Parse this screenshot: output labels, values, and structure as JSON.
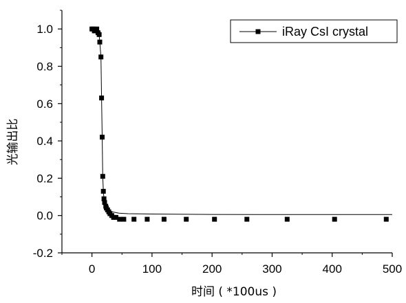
{
  "chart_data": {
    "type": "line",
    "title": "",
    "xlabel": "时间 ( *100us )",
    "ylabel": "光输出比",
    "xlim": [
      -50,
      500
    ],
    "ylim": [
      -0.2,
      1.1
    ],
    "xticks": [
      0,
      100,
      200,
      300,
      400,
      500
    ],
    "yticks": [
      -0.2,
      0.0,
      0.2,
      0.4,
      0.6,
      0.8,
      1.0
    ],
    "xtick_labels": [
      "0",
      "100",
      "200",
      "300",
      "400",
      "500"
    ],
    "ytick_labels": [
      "-0.2",
      "0.0",
      "0.2",
      "0.4",
      "0.6",
      "0.8",
      "1.0"
    ],
    "grid": false,
    "legend_position": "top-right",
    "series": [
      {
        "name": "iRay CsI crystal",
        "color": "#000000",
        "marker": "square",
        "points": [
          [
            0,
            1.0
          ],
          [
            2,
            1.0
          ],
          [
            4,
            0.99
          ],
          [
            6,
            0.99
          ],
          [
            8,
            1.0
          ],
          [
            10,
            0.98
          ],
          [
            12,
            0.97
          ],
          [
            13,
            0.93
          ],
          [
            15,
            0.85
          ],
          [
            16,
            0.63
          ],
          [
            17,
            0.42
          ],
          [
            18,
            0.21
          ],
          [
            19,
            0.13
          ],
          [
            20,
            0.09
          ],
          [
            21,
            0.07
          ],
          [
            23,
            0.05
          ],
          [
            24,
            0.04
          ],
          [
            26,
            0.03
          ],
          [
            28,
            0.02
          ],
          [
            30,
            0.01
          ],
          [
            33,
            0.0
          ],
          [
            36,
            -0.01
          ],
          [
            40,
            -0.01
          ],
          [
            46,
            -0.02
          ],
          [
            53,
            -0.02
          ],
          [
            70,
            -0.02
          ],
          [
            92,
            -0.02
          ],
          [
            120,
            -0.02
          ],
          [
            157,
            -0.02
          ],
          [
            204,
            -0.02
          ],
          [
            258,
            -0.02
          ],
          [
            325,
            -0.02
          ],
          [
            404,
            -0.02
          ],
          [
            490,
            -0.02
          ]
        ],
        "line": [
          [
            0,
            1.0
          ],
          [
            5,
            1.0
          ],
          [
            10,
            0.99
          ],
          [
            12,
            0.97
          ],
          [
            13,
            0.93
          ],
          [
            15,
            0.85
          ],
          [
            16,
            0.63
          ],
          [
            17,
            0.42
          ],
          [
            18,
            0.21
          ],
          [
            19,
            0.13
          ],
          [
            20,
            0.09
          ],
          [
            21,
            0.07
          ],
          [
            23,
            0.05
          ],
          [
            26,
            0.035
          ],
          [
            30,
            0.025
          ],
          [
            36,
            0.018
          ],
          [
            45,
            0.013
          ],
          [
            60,
            0.01
          ],
          [
            100,
            0.008
          ],
          [
            200,
            0.006
          ],
          [
            300,
            0.005
          ],
          [
            400,
            0.005
          ],
          [
            500,
            0.005
          ]
        ]
      }
    ]
  }
}
